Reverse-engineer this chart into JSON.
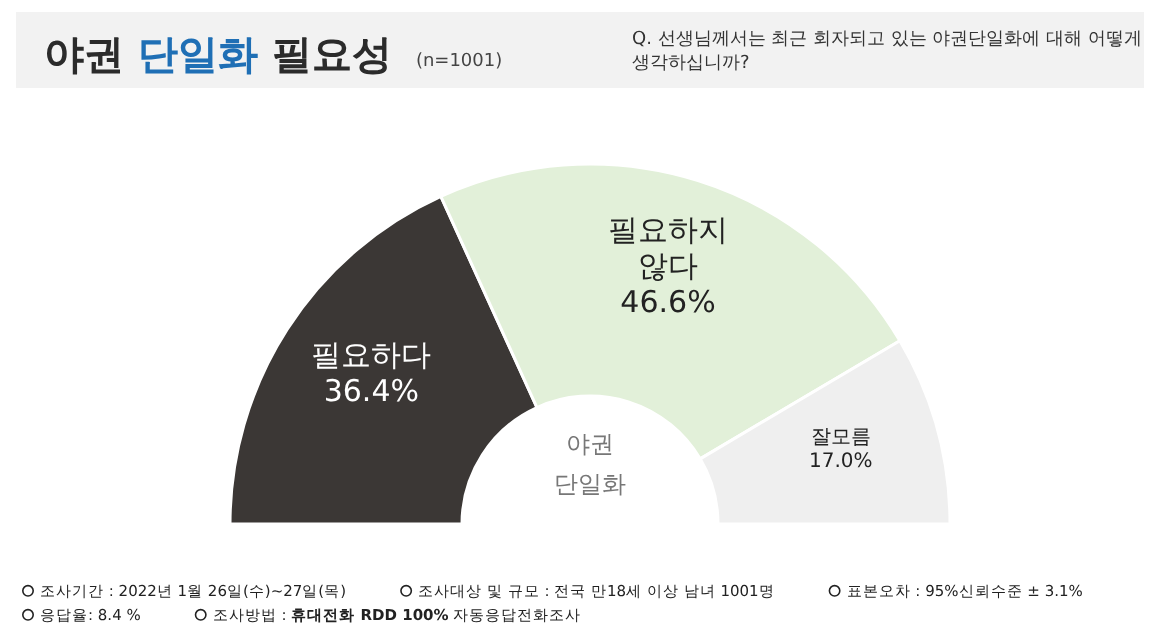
{
  "chart_data": {
    "type": "donut",
    "title": "야권 단일화 필요성",
    "subtitle": "(n=1001)",
    "categories": [
      "필요하다",
      "필요하지 않다",
      "잘모름"
    ],
    "values": [
      36.4,
      46.6,
      17.0
    ],
    "colors": [
      "#3b3735",
      "#e2f0d9",
      "#efefef"
    ],
    "value_labels": [
      "36.4%",
      "46.6%",
      "17.0%"
    ],
    "annotations": [
      "Q. 선생님께서는 최근 회자되고 있는 야권단일화에 대해 어떻게 생각하십니까?",
      "야권 단일화",
      "조사기간 : 2022년 1월 26일(수)~27일(목)",
      "조사대상 및 규모 : 전국 만18세 이상 남녀 1001명",
      "표본오차 : 95%신뢰수준 ± 3.1%",
      "응답율: 8.4 %",
      "조사방법 : **휴대전화 RDD 100%** 자동응답전화조사"
    ]
  }
}
